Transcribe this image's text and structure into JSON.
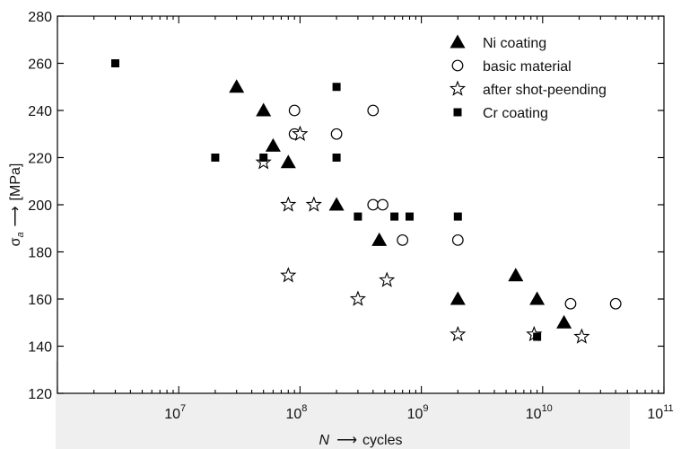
{
  "chart_data": {
    "type": "scatter",
    "title": "",
    "xlabel_symbol": "N",
    "xlabel_unit": "cycles",
    "ylabel_symbol": "σ",
    "ylabel_subscript": "a",
    "ylabel_unit": "[MPa]",
    "xscale": "log",
    "xlim": [
      1000000,
      100000000000
    ],
    "ylim": [
      120,
      280
    ],
    "yticks": [
      "120",
      "140",
      "160",
      "180",
      "200",
      "220",
      "240",
      "260",
      "280"
    ],
    "xticks": [
      {
        "base": "10",
        "exp": "7",
        "value": 10000000
      },
      {
        "base": "10",
        "exp": "8",
        "value": 100000000
      },
      {
        "base": "10",
        "exp": "9",
        "value": 1000000000
      },
      {
        "base": "10",
        "exp": "10",
        "value": 10000000000
      },
      {
        "base": "10",
        "exp": "11",
        "value": 100000000000
      }
    ],
    "grid": false,
    "legend_position": "top-right",
    "series": [
      {
        "name": "Ni coating",
        "marker": "triangle-filled",
        "points": [
          [
            30000000,
            250
          ],
          [
            50000000,
            240
          ],
          [
            60000000,
            225
          ],
          [
            80000000,
            218
          ],
          [
            200000000,
            200
          ],
          [
            450000000,
            185
          ],
          [
            2000000000,
            160
          ],
          [
            6000000000,
            170
          ],
          [
            9000000000,
            160
          ],
          [
            15000000000,
            150
          ]
        ]
      },
      {
        "name": "basic material",
        "marker": "circle-open",
        "points": [
          [
            90000000,
            240
          ],
          [
            90000000,
            230
          ],
          [
            200000000,
            230
          ],
          [
            400000000,
            240
          ],
          [
            400000000,
            200
          ],
          [
            480000000,
            200
          ],
          [
            700000000,
            185
          ],
          [
            2000000000,
            185
          ],
          [
            17000000000,
            158
          ],
          [
            40000000000,
            158
          ]
        ]
      },
      {
        "name": "after shot-peending",
        "marker": "star-open",
        "points": [
          [
            50000000,
            218
          ],
          [
            100000000,
            230
          ],
          [
            80000000,
            200
          ],
          [
            130000000,
            200
          ],
          [
            80000000,
            170
          ],
          [
            300000000,
            160
          ],
          [
            520000000,
            168
          ],
          [
            2000000000,
            145
          ],
          [
            8500000000,
            145
          ],
          [
            21000000000,
            144
          ]
        ]
      },
      {
        "name": "Cr coating",
        "marker": "square-filled",
        "points": [
          [
            3000000,
            260
          ],
          [
            20000000,
            220
          ],
          [
            50000000,
            220
          ],
          [
            200000000,
            250
          ],
          [
            200000000,
            220
          ],
          [
            300000000,
            195
          ],
          [
            600000000,
            195
          ],
          [
            800000000,
            195
          ],
          [
            2000000000,
            195
          ],
          [
            9000000000,
            144
          ]
        ]
      }
    ]
  }
}
